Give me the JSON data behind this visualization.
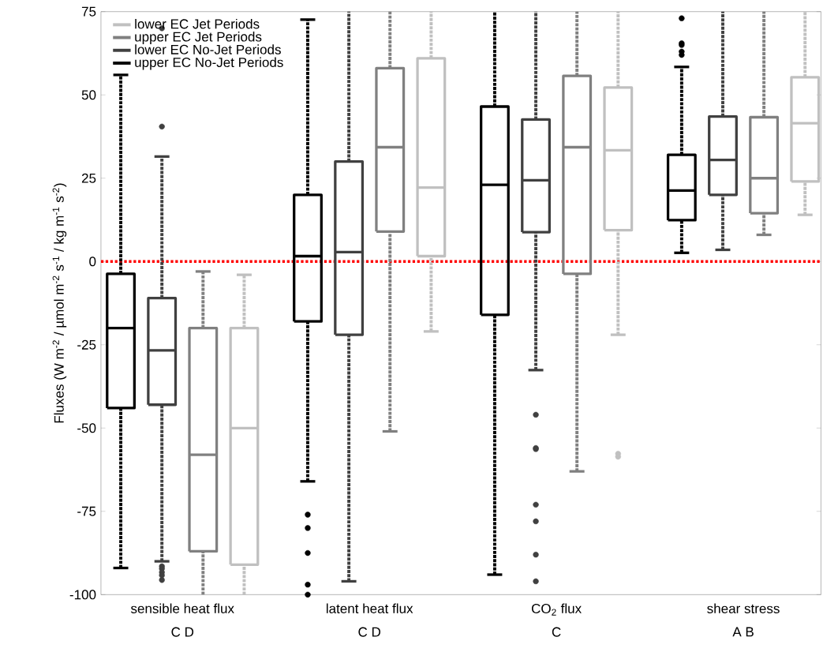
{
  "chart_data": {
    "type": "box",
    "ylabel": "Fluxes (W m$^{-2}$ / µmol m$^{-2}$ s$^{-1}$ / kg m$^{-1}$ s$^{-2}$)",
    "categories": [
      "sensible heat flux",
      "latent heat flux",
      "CO$_{2}$ flux",
      "shear stress"
    ],
    "ylim": [
      -100,
      75
    ],
    "yticks": [
      -100,
      -75,
      -50,
      -25,
      0,
      25,
      50,
      75
    ],
    "legend": "top left",
    "marker": "circle",
    "series": [
      {
        "name": "upper EC No-Jet Periods",
        "color": "#000000",
        "boxes": [
          {
            "low": -92,
            "q1": -44,
            "median": -20,
            "q3": -3.7,
            "high": 56
          },
          {
            "low": -66,
            "q1": -18,
            "median": 1.6,
            "q3": 20,
            "high": 72.6,
            "outliers": [
              -76,
              -80,
              -87.5,
              -97,
              -100
            ]
          },
          {
            "low": -94,
            "q1": -16,
            "median": 23,
            "q3": 46.5,
            "high": 75
          },
          {
            "low": 2.6,
            "q1": 12.4,
            "median": 21.3,
            "q3": 32,
            "high": 58.4,
            "outliers": [
              73,
              65.5,
              65,
              63,
              62
            ]
          }
        ]
      },
      {
        "name": "lower EC No-Jet Periods",
        "color": "#404040",
        "boxes": [
          {
            "low": -90,
            "q1": -43,
            "median": -26.7,
            "q3": -11,
            "high": 31.5,
            "outliers": [
              70,
              40.5,
              -91.5,
              -92.2,
              -93.3,
              -94.2,
              -95.6
            ]
          },
          {
            "low": -96,
            "q1": -22,
            "median": 2.8,
            "q3": 30,
            "high": 75
          },
          {
            "low": -32.6,
            "q1": 8.8,
            "median": 24.4,
            "q3": 42.6,
            "high": 75,
            "outliers": [
              -46,
              -56,
              -56.3,
              -73,
              -78,
              -88,
              -96
            ]
          },
          {
            "low": 3.5,
            "q1": 20,
            "median": 30.5,
            "q3": 43.5,
            "high": 75
          }
        ]
      },
      {
        "name": "upper EC Jet Periods",
        "color": "#808080",
        "boxes": [
          {
            "low": -100,
            "q1": -87,
            "median": -58,
            "q3": -20,
            "high": -3
          },
          {
            "low": -51,
            "q1": 9,
            "median": 34.3,
            "q3": 58,
            "high": 75
          },
          {
            "low": -63,
            "q1": -3.7,
            "median": 34.3,
            "q3": 55.7,
            "high": 75
          },
          {
            "low": 8,
            "q1": 14.5,
            "median": 25,
            "q3": 43.3,
            "high": 75
          }
        ]
      },
      {
        "name": "lower EC Jet Periods",
        "color": "#c0c0c0",
        "boxes": [
          {
            "low": -100,
            "q1": -91,
            "median": -50,
            "q3": -20,
            "high": -4
          },
          {
            "low": -21,
            "q1": 1.6,
            "median": 22.2,
            "q3": 61,
            "high": 75
          },
          {
            "low": -22,
            "q1": 9.4,
            "median": 33.4,
            "q3": 52.2,
            "high": 75,
            "outliers": [
              -58.6,
              -57.7
            ]
          },
          {
            "low": 14,
            "q1": 24,
            "median": 41.5,
            "q3": 55.3,
            "high": 75
          }
        ]
      }
    ],
    "ref_lines": [
      {
        "axis": "y",
        "value": 0,
        "color": "#ff0000",
        "line_style": "dotted"
      }
    ],
    "annotations": [
      "C D",
      "C D",
      "C",
      "A B"
    ]
  }
}
